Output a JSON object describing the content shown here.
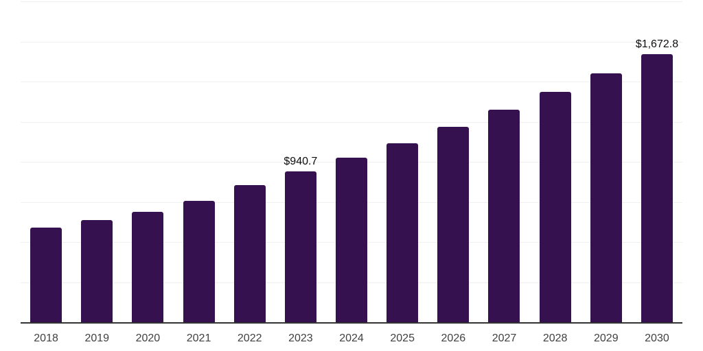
{
  "colors": {
    "background": "#ffffff",
    "bar": "#36114F",
    "gridline": "#efefef",
    "axis_line": "#333333",
    "tick_label": "#404040",
    "data_label": "#0d0d0d"
  },
  "chart_data": {
    "type": "bar",
    "title": "",
    "xlabel": "",
    "ylabel": "",
    "categories": [
      "2018",
      "2019",
      "2020",
      "2021",
      "2022",
      "2023",
      "2024",
      "2025",
      "2026",
      "2027",
      "2028",
      "2029",
      "2030"
    ],
    "values": [
      588,
      636,
      689,
      757,
      854,
      940.7,
      1026,
      1116,
      1220,
      1325,
      1437,
      1551,
      1672.8
    ],
    "point_labels": [
      "",
      "",
      "",
      "",
      "",
      "$940.7",
      "",
      "",
      "",
      "",
      "",
      "",
      "$1,672.8"
    ],
    "ylim": [
      0,
      2000
    ],
    "gridline_interval": 250,
    "grid": true,
    "y_axis_labels_visible": false,
    "legend": false
  }
}
